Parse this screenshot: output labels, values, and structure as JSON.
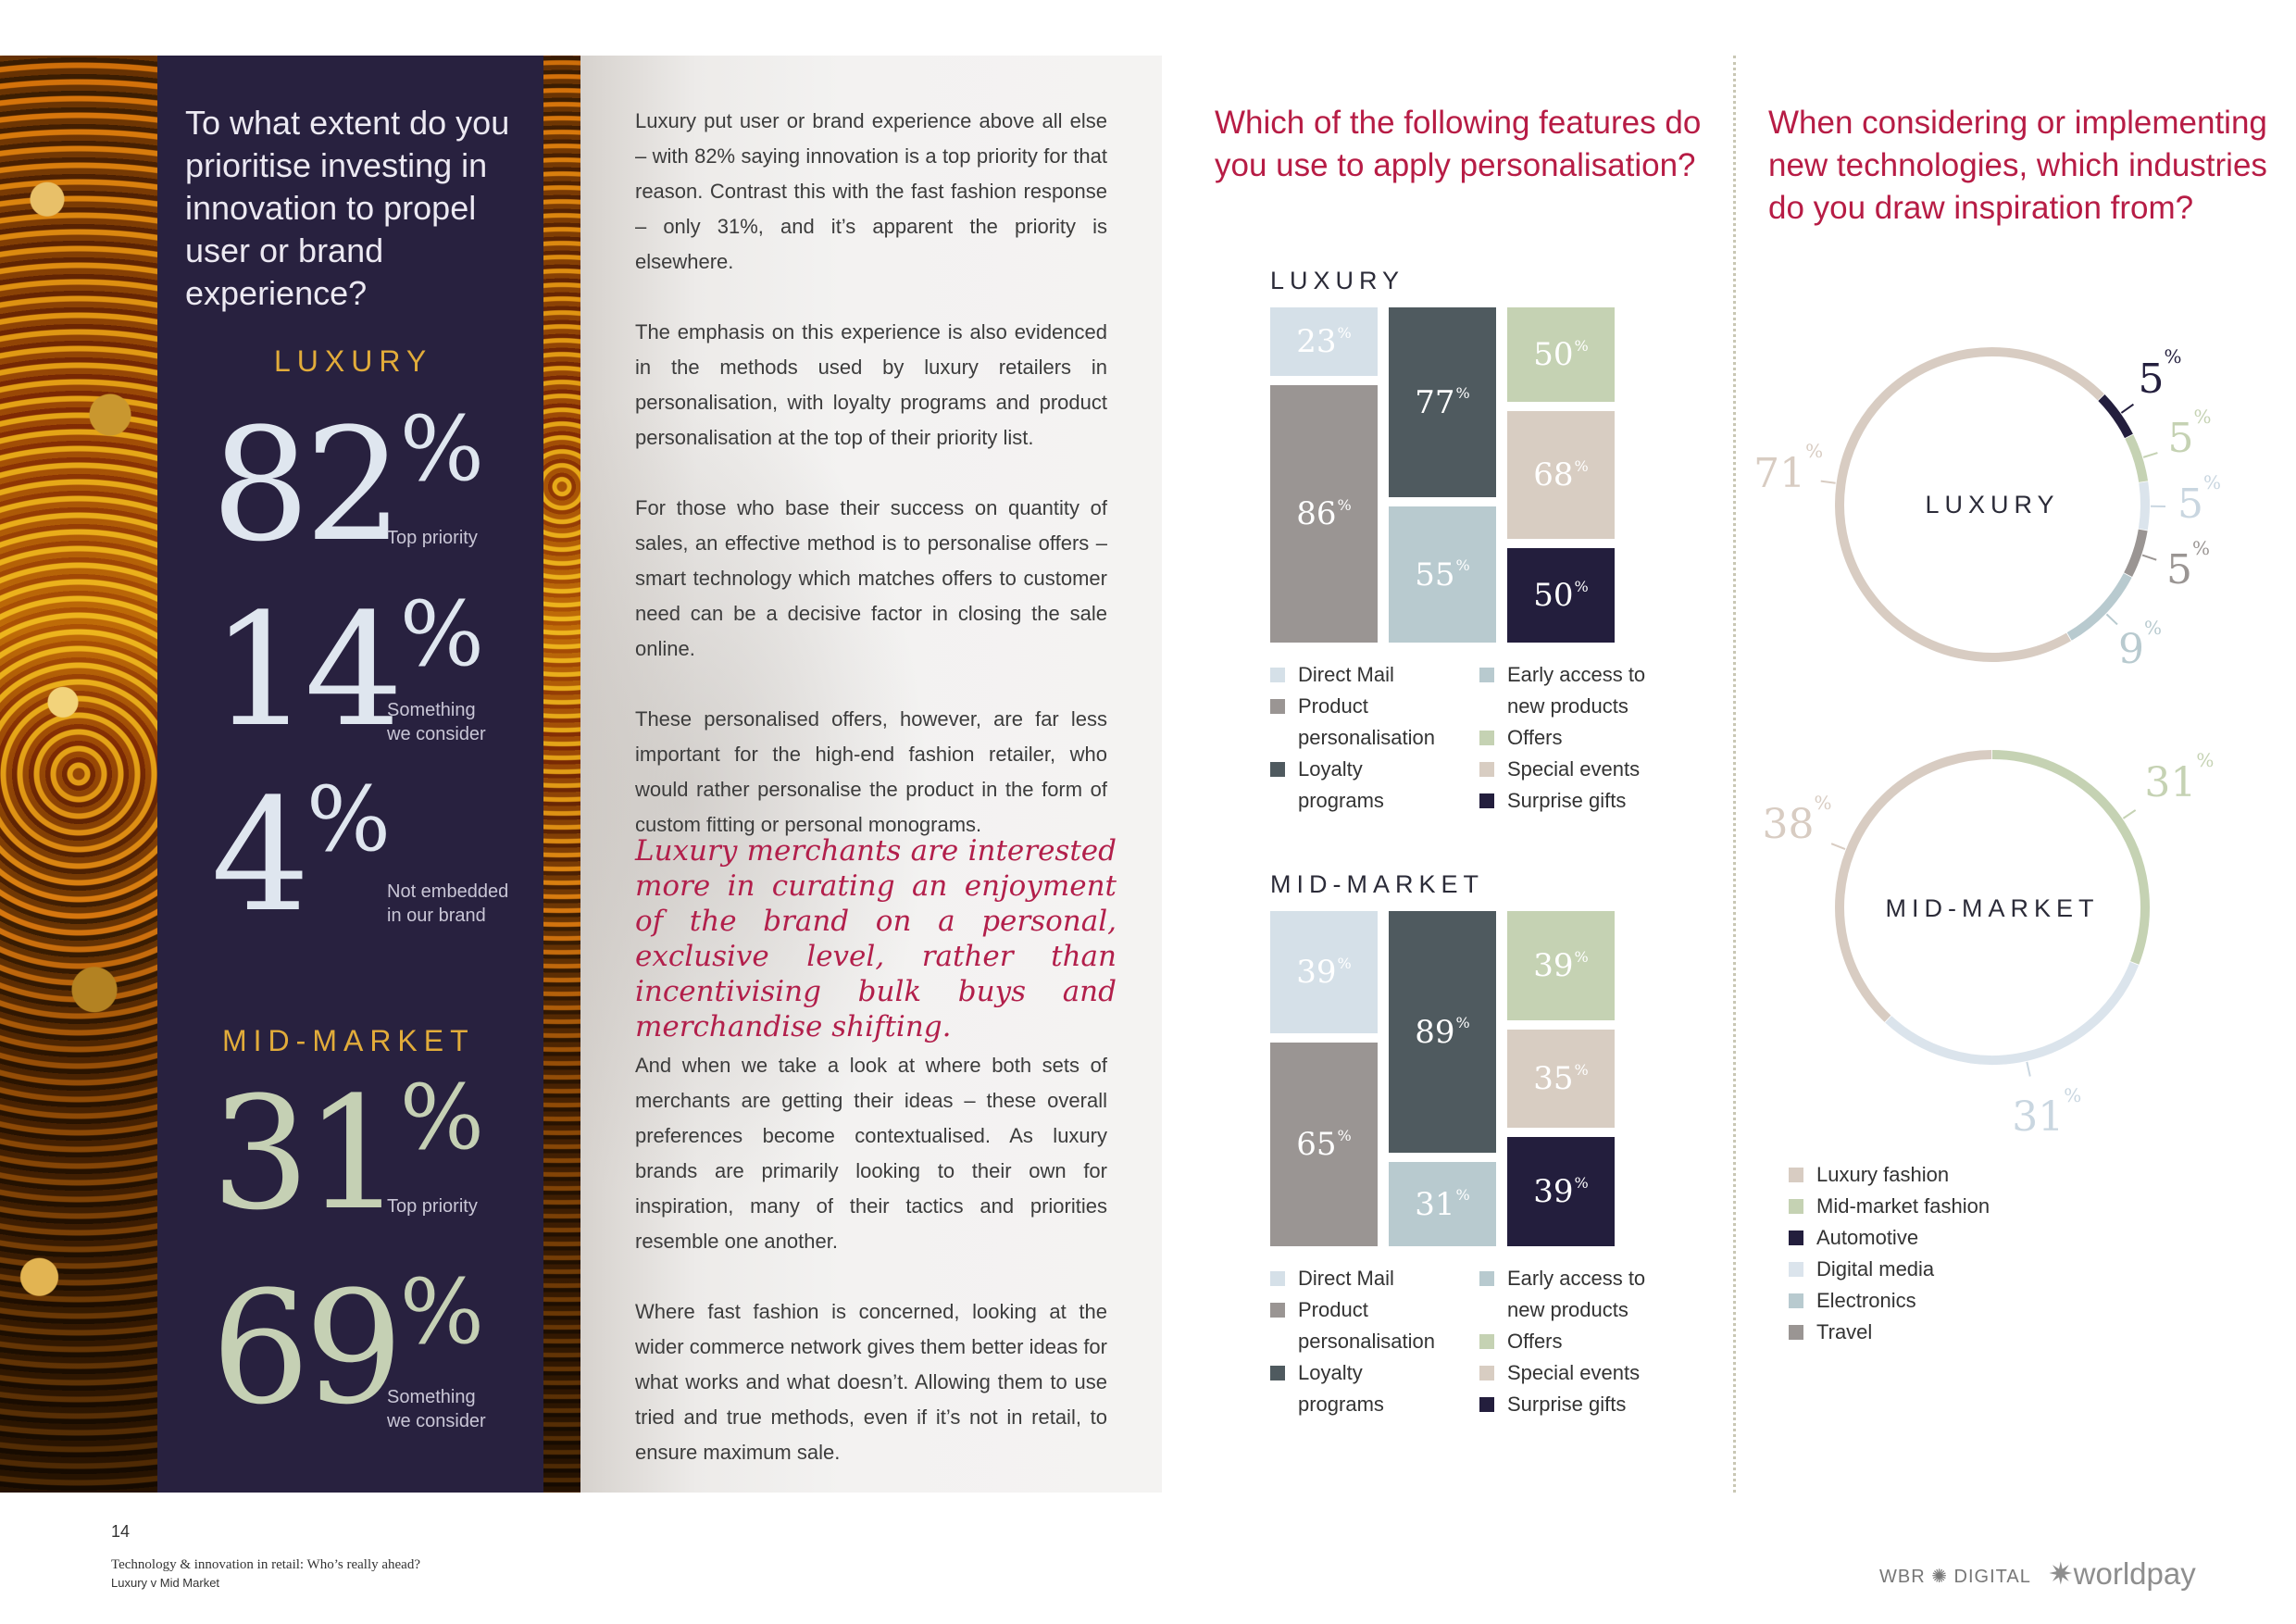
{
  "colors": {
    "navy": "#28213f",
    "gold": "#e2ac3a",
    "crimson": "#b71c45",
    "direct_mail": "#d5e0e8",
    "product_personalisation": "#9a9593",
    "loyalty_programs": "#4f5a5f",
    "early_access": "#b8cacf",
    "offers": "#c5d2b3",
    "special_events": "#d8cdc2",
    "surprise_gifts": "#231e3d",
    "luxury_fashion": "#d8ccc2",
    "midmarket_fashion": "#c5d2b3",
    "automotive": "#231e3d",
    "digital_media": "#dbe4ec",
    "electronics": "#b8cacf",
    "travel": "#9a9593"
  },
  "left_panel": {
    "question": "To what extent do you prioritise investing in innovation to propel user or brand experience?",
    "luxury_heading": "LUXURY",
    "luxury_stats": [
      {
        "value": "82",
        "pct": "%",
        "label_1": "Top priority",
        "label_2": ""
      },
      {
        "value": "14",
        "pct": "%",
        "label_1": "Something",
        "label_2": "we consider"
      },
      {
        "value": "4",
        "pct": "%",
        "label_1": "Not embedded",
        "label_2": "in our brand"
      }
    ],
    "mid_heading": "MID-MARKET",
    "mid_stats": [
      {
        "value": "31",
        "pct": "%",
        "label_1": "Top priority",
        "label_2": ""
      },
      {
        "value": "69",
        "pct": "%",
        "label_1": "Something",
        "label_2": "we consider"
      }
    ]
  },
  "body": {
    "p1": "Luxury put user or brand experience above all else – with 82% saying innovation is a top priority for that reason. Contrast this with the fast fashion response – only 31%, and it’s apparent the priority is elsewhere.",
    "p2": "The emphasis on this experience is also evidenced in the methods used by luxury retailers in personalisation, with loyalty programs and product personalisation at the top of their priority list.",
    "p3": "For those who base their success on quantity of sales, an effective method is to personalise offers – smart technology which matches offers to customer need can be a decisive factor in closing the sale online.",
    "p4": "These personalised offers, however, are far less important for the high-end fashion retailer, who would rather personalise the product in the form of custom fitting or personal monograms.",
    "quote": "Luxury merchants are interested more in curating an enjoyment of the brand on a personal, exclusive level, rather than incentivising bulk buys and merchandise shifting.",
    "p5": "And when we take a look at where both sets of merchants are getting their ideas – these overall preferences become contextualised. As luxury brands are primarily looking to their own for inspiration, many of their tactics and priorities resemble one another.",
    "p6": "Where fast fashion is concerned, looking at the wider commerce network gives them better ideas for what works and what doesn’t. Allowing them to use tried and true methods, even if it’s not in retail, to ensure maximum sale."
  },
  "features": {
    "question": "Which of the following features do you use to apply personalisation?",
    "luxury_label": "LUXURY",
    "mid_label": "MID-MARKET",
    "legend": [
      {
        "name_1": "Direct Mail",
        "name_2": "",
        "color": "#d5e0e8"
      },
      {
        "name_1": "Product",
        "name_2": "personalisation",
        "color": "#9a9593"
      },
      {
        "name_1": "Loyalty",
        "name_2": "programs",
        "color": "#4f5a5f"
      },
      {
        "name_1": "Early access to",
        "name_2": "new products",
        "color": "#b8cacf"
      },
      {
        "name_1": "Offers",
        "name_2": "",
        "color": "#c5d2b3"
      },
      {
        "name_1": "Special events",
        "name_2": "",
        "color": "#d8cdc2"
      },
      {
        "name_1": "Surprise gifts",
        "name_2": "",
        "color": "#231e3d"
      }
    ],
    "pct_symbol": "%"
  },
  "inspiration": {
    "question": "When considering or implementing new technologies, which industries do you draw inspiration from?",
    "luxury_label": "LUXURY",
    "mid_label": "MID-MARKET",
    "legend": [
      {
        "name": "Luxury fashion",
        "color": "#d8ccc2"
      },
      {
        "name": "Mid-market fashion",
        "color": "#c5d2b3"
      },
      {
        "name": "Automotive",
        "color": "#231e3d"
      },
      {
        "name": "Digital media",
        "color": "#dbe4ec"
      },
      {
        "name": "Electronics",
        "color": "#b8cacf"
      },
      {
        "name": "Travel",
        "color": "#9a9593"
      }
    ],
    "pct_symbol": "%"
  },
  "chart_data": [
    {
      "type": "bar",
      "title": "LUXURY",
      "categories": [
        "Direct Mail",
        "Product personalisation",
        "Loyalty programs",
        "Early access to new products",
        "Offers",
        "Special events",
        "Surprise gifts"
      ],
      "values": [
        23,
        86,
        77,
        55,
        50,
        68,
        50
      ],
      "labels": [
        "23",
        "86",
        "77",
        "55",
        "50",
        "68",
        "50"
      ]
    },
    {
      "type": "bar",
      "title": "MID-MARKET",
      "categories": [
        "Direct Mail",
        "Product personalisation",
        "Loyalty programs",
        "Early access to new products",
        "Offers",
        "Special events",
        "Surprise gifts"
      ],
      "values": [
        39,
        65,
        89,
        31,
        39,
        35,
        39
      ],
      "labels": [
        "39",
        "65",
        "89",
        "31",
        "39",
        "35",
        "39"
      ]
    },
    {
      "type": "pie",
      "title": "LUXURY",
      "categories": [
        "Luxury fashion",
        "Automotive",
        "Mid-market fashion",
        "Digital media",
        "Travel",
        "Electronics"
      ],
      "values": [
        71,
        5,
        5,
        5,
        5,
        9
      ],
      "labels": [
        "71",
        "5",
        "5",
        "5",
        "5",
        "9"
      ]
    },
    {
      "type": "pie",
      "title": "MID-MARKET",
      "categories": [
        "Mid-market fashion",
        "Digital media",
        "Luxury fashion"
      ],
      "values": [
        31,
        31,
        38
      ],
      "labels": [
        "31",
        "31",
        "38"
      ]
    }
  ],
  "footer": {
    "page_number": "14",
    "title": "Technology & innovation in retail: Who’s really ahead?",
    "subtitle": "Luxury v Mid Market",
    "logo_wbr": "WBR ✺ DIGITAL",
    "logo_worldpay": "worldpay"
  }
}
